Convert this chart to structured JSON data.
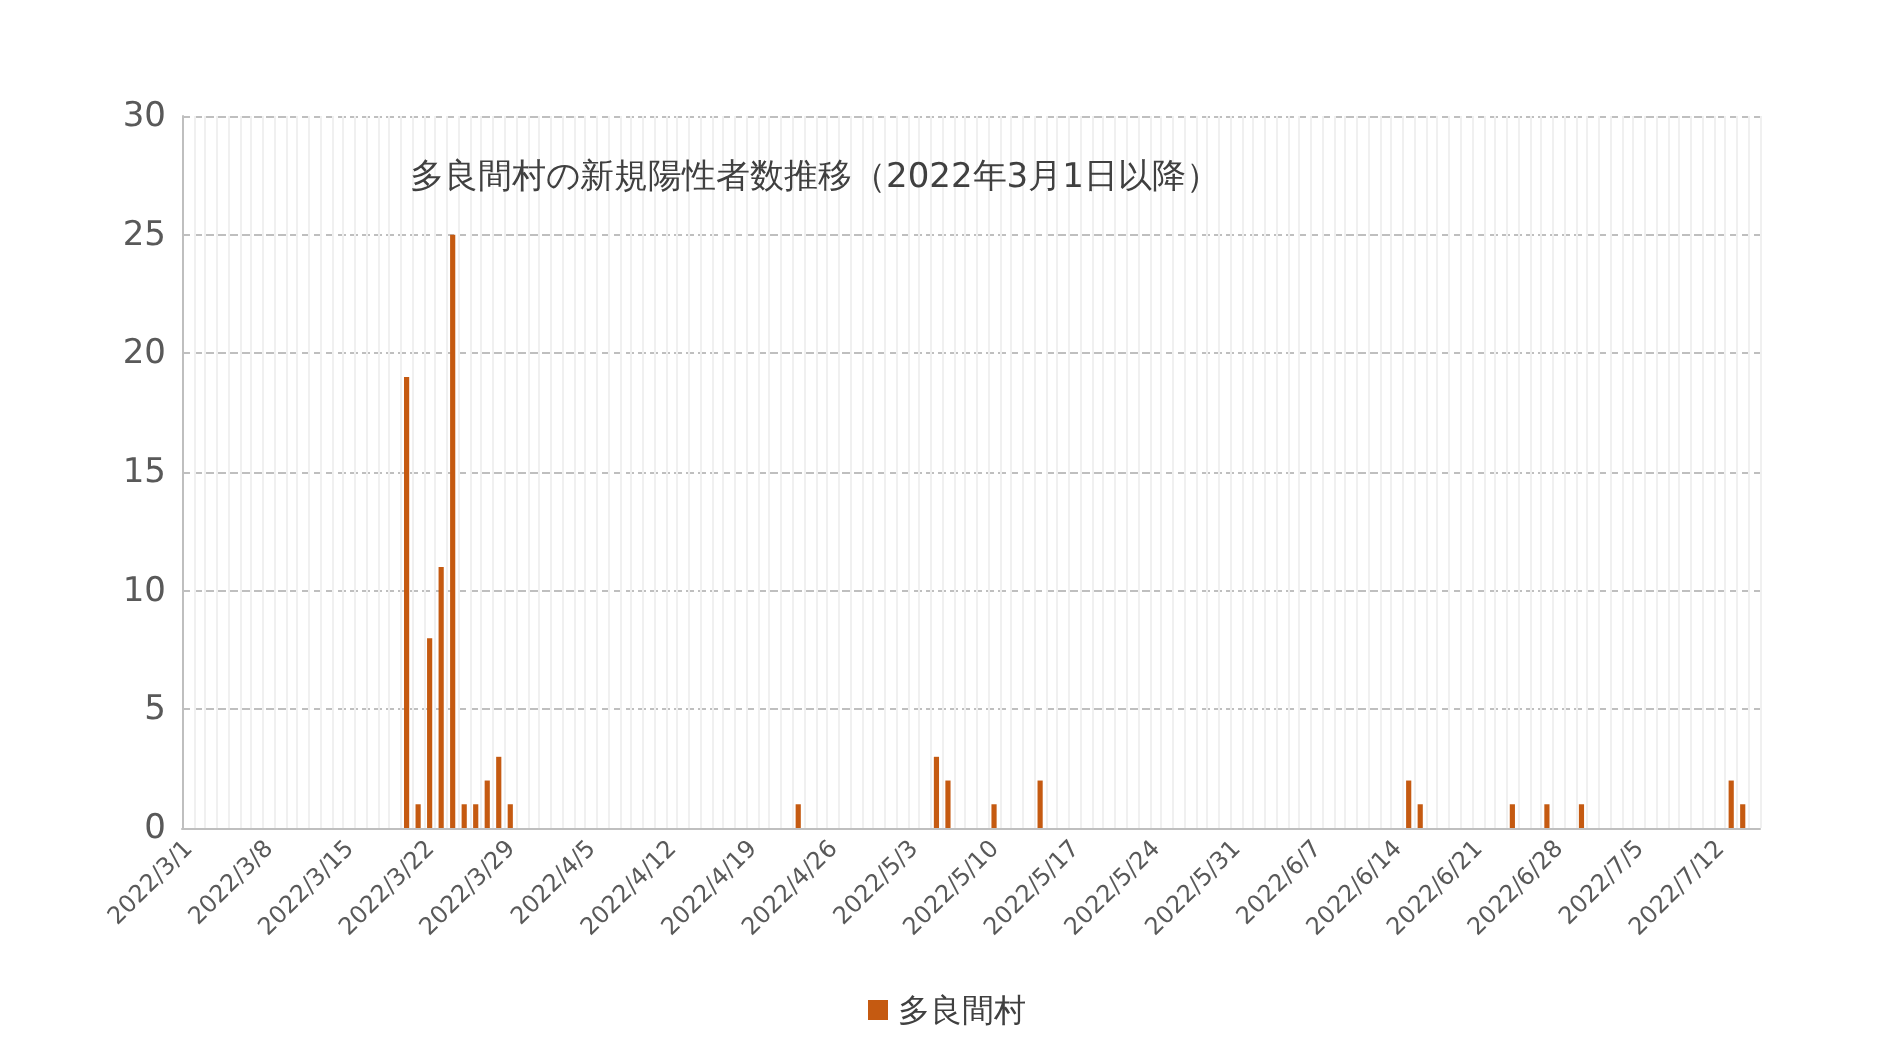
{
  "chart_data": {
    "type": "bar",
    "title": "多良間村の新規陽性者数推移（2022年3月1日以降）",
    "categories": [
      "2022/3/1",
      null,
      null,
      null,
      null,
      null,
      null,
      "2022/3/8",
      null,
      null,
      null,
      null,
      null,
      null,
      "2022/3/15",
      null,
      null,
      null,
      null,
      null,
      null,
      "2022/3/22",
      null,
      null,
      null,
      null,
      null,
      null,
      "2022/3/29",
      null,
      null,
      null,
      null,
      null,
      null,
      "2022/4/5",
      null,
      null,
      null,
      null,
      null,
      null,
      "2022/4/12",
      null,
      null,
      null,
      null,
      null,
      null,
      "2022/4/19",
      null,
      null,
      null,
      null,
      null,
      null,
      "2022/4/26",
      null,
      null,
      null,
      null,
      null,
      null,
      "2022/5/3",
      null,
      null,
      null,
      null,
      null,
      null,
      "2022/5/10",
      null,
      null,
      null,
      null,
      null,
      null,
      "2022/5/17",
      null,
      null,
      null,
      null,
      null,
      null,
      "2022/5/24",
      null,
      null,
      null,
      null,
      null,
      null,
      "2022/5/31",
      null,
      null,
      null,
      null,
      null,
      null,
      "2022/6/7",
      null,
      null,
      null,
      null,
      null,
      null,
      "2022/6/14",
      null,
      null,
      null,
      null,
      null,
      null,
      "2022/6/21",
      null,
      null,
      null,
      null,
      null,
      null,
      "2022/6/28",
      null,
      null,
      null,
      null,
      null,
      null,
      "2022/7/5",
      null,
      null,
      null,
      null,
      null,
      null,
      "2022/7/12",
      null,
      null,
      null
    ],
    "series": [
      {
        "name": "多良間村",
        "color": "#c55a11",
        "values": [
          0,
          0,
          0,
          0,
          0,
          0,
          0,
          0,
          0,
          0,
          0,
          0,
          0,
          0,
          0,
          0,
          0,
          0,
          0,
          19,
          1,
          8,
          11,
          25,
          1,
          1,
          2,
          3,
          1,
          0,
          0,
          0,
          0,
          0,
          0,
          0,
          0,
          0,
          0,
          0,
          0,
          0,
          0,
          0,
          0,
          0,
          0,
          0,
          0,
          0,
          0,
          0,
          0,
          1,
          0,
          0,
          0,
          0,
          0,
          0,
          0,
          0,
          0,
          0,
          0,
          3,
          2,
          0,
          0,
          0,
          1,
          0,
          0,
          0,
          2,
          0,
          0,
          0,
          0,
          0,
          0,
          0,
          0,
          0,
          0,
          0,
          0,
          0,
          0,
          0,
          0,
          0,
          0,
          0,
          0,
          0,
          0,
          0,
          0,
          0,
          0,
          0,
          0,
          0,
          0,
          0,
          2,
          1,
          0,
          0,
          0,
          0,
          0,
          0,
          0,
          1,
          0,
          0,
          1,
          0,
          0,
          1,
          0,
          0,
          0,
          0,
          0,
          0,
          0,
          0,
          0,
          0,
          0,
          0,
          2,
          1,
          0
        ]
      }
    ],
    "ylim": [
      0,
      30
    ],
    "yticks": [
      0,
      5,
      10,
      15,
      20,
      25,
      30
    ],
    "grid": true,
    "legend": "bottom"
  }
}
